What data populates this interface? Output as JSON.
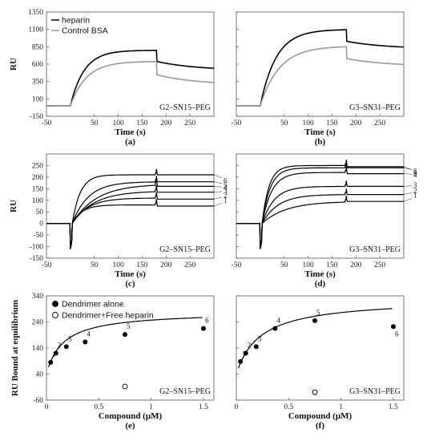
{
  "chart_data": [
    {
      "id": "a",
      "type": "line",
      "panel_letter": "(a)",
      "sample": "G2–SN15–PEG",
      "xlabel": "Time (s)",
      "ylabel": "RU",
      "xlim": [
        -50,
        300
      ],
      "ylim": [
        -150,
        1350
      ],
      "xticks": [
        "-50",
        "50",
        "100",
        "150",
        "200",
        "250"
      ],
      "yticks": [
        "-150",
        "100",
        "350",
        "600",
        "850",
        "1100",
        "1350"
      ],
      "legend": {
        "position": "top-left",
        "entries": [
          {
            "name": "heparin",
            "color": "#000000"
          },
          {
            "name": "Control BSA",
            "color": "#999999"
          }
        ]
      },
      "series": [
        {
          "name": "heparin",
          "color": "#000000",
          "plateau": 800,
          "inject": 0,
          "end_inject": 180,
          "drop": 640,
          "end": 510,
          "k": 0.035,
          "kd": 0.0025
        },
        {
          "name": "Control BSA",
          "color": "#999999",
          "plateau": 640,
          "inject": 0,
          "end_inject": 180,
          "drop": 450,
          "end": 300,
          "k": 0.03,
          "kd": 0.003
        }
      ]
    },
    {
      "id": "b",
      "type": "line",
      "panel_letter": "(b)",
      "sample": "G3–SN31–PEG",
      "xlabel": "Time (s)",
      "ylabel": "",
      "xlim": [
        -50,
        300
      ],
      "ylim": [
        -150,
        1350
      ],
      "xticks": [
        "-50",
        "50",
        "100",
        "150",
        "200",
        "250"
      ],
      "yticks": [],
      "series": [
        {
          "name": "heparin",
          "color": "#000000",
          "plateau": 1100,
          "inject": 0,
          "end_inject": 180,
          "drop": 930,
          "end": 820,
          "k": 0.03,
          "kd": 0.002
        },
        {
          "name": "Control BSA",
          "color": "#999999",
          "plateau": 860,
          "inject": 0,
          "end_inject": 180,
          "drop": 680,
          "end": 570,
          "k": 0.025,
          "kd": 0.002
        }
      ]
    },
    {
      "id": "c",
      "type": "line",
      "panel_letter": "(c)",
      "sample": "G2–SN15–PEG",
      "xlabel": "Time (s)",
      "ylabel": "RU",
      "xlim": [
        -50,
        300
      ],
      "ylim": [
        -150,
        300
      ],
      "xticks": [
        "-50",
        "50",
        "100",
        "150",
        "200",
        "250"
      ],
      "yticks": [
        "-150",
        "-100",
        "-50",
        "0",
        "50",
        "100",
        "150",
        "200",
        "250"
      ],
      "series": [
        {
          "name": "1",
          "label": "1",
          "color": "#000000",
          "plateau": 80,
          "end": 75,
          "k": 0.05
        },
        {
          "name": "2",
          "label": "2",
          "color": "#000000",
          "plateau": 110,
          "end": 105,
          "k": 0.03
        },
        {
          "name": "3",
          "label": "3",
          "color": "#000000",
          "plateau": 140,
          "end": 135,
          "k": 0.022
        },
        {
          "name": "4",
          "label": "4",
          "color": "#000000",
          "plateau": 170,
          "end": 160,
          "k": 0.02
        },
        {
          "name": "5",
          "label": "5",
          "color": "#000000",
          "plateau": 180,
          "end": 180,
          "k": 0.03
        },
        {
          "name": "6",
          "label": "6",
          "color": "#000000",
          "plateau": 210,
          "end": 210,
          "k": 0.06
        }
      ]
    },
    {
      "id": "d",
      "type": "line",
      "panel_letter": "(d)",
      "sample": "G3–SN31–PEG",
      "xlabel": "Time (s)",
      "ylabel": "",
      "xlim": [
        -50,
        300
      ],
      "ylim": [
        -150,
        300
      ],
      "xticks": [
        "-50",
        "50",
        "100",
        "150",
        "200",
        "250"
      ],
      "yticks": [],
      "series": [
        {
          "name": "1",
          "label": "1",
          "color": "#000000",
          "plateau": 95,
          "end": 95,
          "k": 0.02
        },
        {
          "name": "2",
          "label": "2",
          "color": "#000000",
          "plateau": 125,
          "end": 125,
          "k": 0.03
        },
        {
          "name": "3",
          "label": "3",
          "color": "#000000",
          "plateau": 160,
          "end": 160,
          "k": 0.04
        },
        {
          "name": "4",
          "label": "4",
          "color": "#000000",
          "plateau": 220,
          "end": 215,
          "k": 0.05
        },
        {
          "name": "5",
          "label": "5",
          "color": "#000000",
          "plateau": 240,
          "end": 240,
          "k": 0.06
        },
        {
          "name": "6",
          "label": "6",
          "color": "#000000",
          "plateau": 250,
          "end": 245,
          "k": 0.07
        }
      ]
    },
    {
      "id": "e",
      "type": "scatter",
      "panel_letter": "(e)",
      "sample": "G2–SN15–PEG",
      "xlabel": "Compound (μM)",
      "ylabel": "RU Bound at equilibrium",
      "xlim": [
        0,
        1.6
      ],
      "ylim": [
        -60,
        340
      ],
      "xticks": [
        "0",
        "0.5",
        "1",
        "1.5"
      ],
      "yticks": [
        "-60",
        "40",
        "140",
        "240",
        "340"
      ],
      "legend": {
        "position": "top-left",
        "entries": [
          {
            "name": "Dendrimer alone",
            "marker": "filled"
          },
          {
            "name": "Dendrimer+Free heparin",
            "marker": "open"
          }
        ]
      },
      "points_alone": [
        {
          "x": 0.04,
          "y": 85,
          "label": "1"
        },
        {
          "x": 0.09,
          "y": 120,
          "label": "2"
        },
        {
          "x": 0.19,
          "y": 145,
          "label": "3"
        },
        {
          "x": 0.37,
          "y": 163,
          "label": "4"
        },
        {
          "x": 0.75,
          "y": 192,
          "label": "5"
        },
        {
          "x": 1.5,
          "y": 215,
          "label": "6"
        }
      ],
      "points_heparin": [
        {
          "x": 0.75,
          "y": -8
        }
      ],
      "fit": {
        "bmax": 240,
        "kd": 0.16
      }
    },
    {
      "id": "f",
      "type": "scatter",
      "panel_letter": "(f)",
      "sample": "G3–SN31–PEG",
      "xlabel": "Compound (μM)",
      "ylabel": "",
      "xlim": [
        0,
        1.6
      ],
      "ylim": [
        -60,
        340
      ],
      "xticks": [
        "0",
        "0.5",
        "1",
        "1.5"
      ],
      "yticks": [],
      "points_alone": [
        {
          "x": 0.04,
          "y": 88,
          "label": "1"
        },
        {
          "x": 0.09,
          "y": 120,
          "label": "2"
        },
        {
          "x": 0.19,
          "y": 145,
          "label": "3"
        },
        {
          "x": 0.37,
          "y": 215,
          "label": "4"
        },
        {
          "x": 0.75,
          "y": 245,
          "label": "5"
        },
        {
          "x": 1.5,
          "y": 222,
          "label": "6"
        }
      ],
      "points_heparin": [
        {
          "x": 0.75,
          "y": -30
        }
      ],
      "fit": {
        "bmax": 290,
        "kd": 0.23
      }
    }
  ]
}
